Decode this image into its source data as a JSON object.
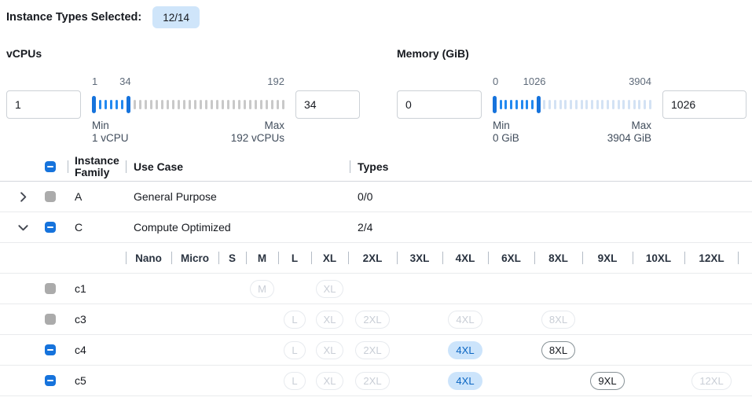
{
  "header": {
    "label": "Instance Types Selected:",
    "badge_value": "12/14"
  },
  "sliders": [
    {
      "title": "vCPUs",
      "left_value": "1",
      "right_value": "34",
      "min": 1,
      "max": 192,
      "from": 1,
      "to": 34,
      "scale": {
        "left": "1",
        "mid": "34",
        "right": "192"
      },
      "min_label": "Min",
      "min_sub": "1 vCPU",
      "max_label": "Max",
      "max_sub": "192 vCPUs",
      "tick_count": 35,
      "unselected_tick_color": "#c9c9c9"
    },
    {
      "title": "Memory (GiB)",
      "left_value": "0",
      "right_value": "1026",
      "min": 0,
      "max": 3904,
      "from": 0,
      "to": 1026,
      "scale": {
        "left": "0",
        "mid": "1026",
        "right": "3904"
      },
      "min_label": "Min",
      "min_sub": "0 GiB",
      "max_label": "Max",
      "max_sub": "3904 GiB",
      "tick_count": 30,
      "unselected_tick_color": "#d3e2f4"
    }
  ],
  "table": {
    "columns": {
      "family": "Instance Family",
      "use_case": "Use Case",
      "types": "Types"
    },
    "select_all_state": "indeterminate",
    "sizes": [
      "Nano",
      "Micro",
      "S",
      "M",
      "L",
      "XL",
      "2XL",
      "3XL",
      "4XL",
      "6XL",
      "8XL",
      "9XL",
      "10XL",
      "12XL"
    ],
    "family_rows": [
      {
        "family": "A",
        "use_case": "General Purpose",
        "types": "0/0",
        "expanded": false,
        "checkbox": "disabled",
        "children": []
      },
      {
        "family": "C",
        "use_case": "Compute Optimized",
        "types": "2/4",
        "expanded": true,
        "checkbox": "indeterminate",
        "children": [
          {
            "name": "c1",
            "checkbox": "disabled",
            "badges": [
              {
                "size": "M",
                "state": "disabled"
              },
              {
                "size": "XL",
                "state": "disabled"
              }
            ]
          },
          {
            "name": "c3",
            "checkbox": "disabled",
            "badges": [
              {
                "size": "L",
                "state": "disabled"
              },
              {
                "size": "XL",
                "state": "disabled"
              },
              {
                "size": "2XL",
                "state": "disabled"
              },
              {
                "size": "4XL",
                "state": "disabled"
              },
              {
                "size": "8XL",
                "state": "disabled"
              }
            ]
          },
          {
            "name": "c4",
            "checkbox": "indeterminate",
            "badges": [
              {
                "size": "L",
                "state": "disabled"
              },
              {
                "size": "XL",
                "state": "disabled"
              },
              {
                "size": "2XL",
                "state": "disabled"
              },
              {
                "size": "4XL",
                "state": "selected"
              },
              {
                "size": "8XL",
                "state": "enabled"
              }
            ]
          },
          {
            "name": "c5",
            "checkbox": "indeterminate",
            "badges": [
              {
                "size": "L",
                "state": "disabled"
              },
              {
                "size": "XL",
                "state": "disabled"
              },
              {
                "size": "2XL",
                "state": "disabled"
              },
              {
                "size": "4XL",
                "state": "selected"
              },
              {
                "size": "9XL",
                "state": "enabled"
              },
              {
                "size": "12XL",
                "state": "disabled"
              }
            ]
          }
        ]
      }
    ]
  },
  "colors": {
    "accent_blue": "#1673dc",
    "selected_tick_blue": "#2289f0",
    "selected_badge_bg": "#cce4fb",
    "selected_badge_text": "#0b66c3",
    "count_badge_bg": "#cfe5fa",
    "disabled_checkbox_gray": "#ababab",
    "divider_gray": "#b4bcc6",
    "row_border": "#e9ebed"
  }
}
